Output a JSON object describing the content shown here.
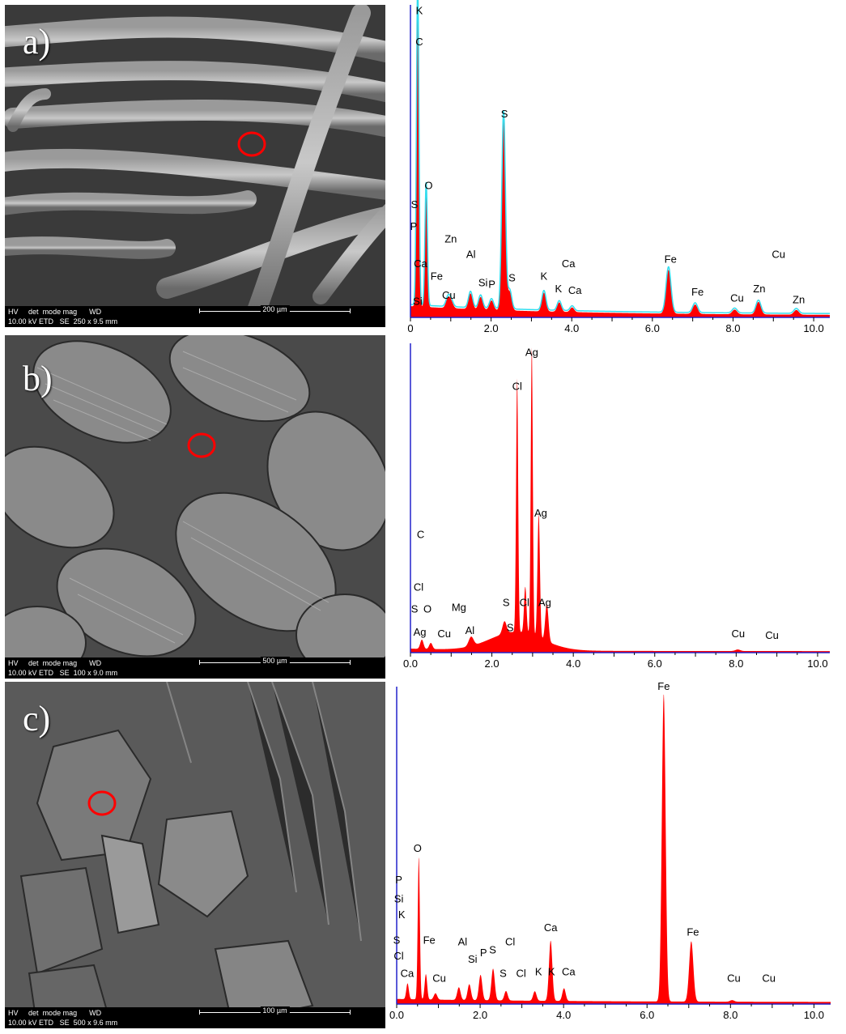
{
  "panels": [
    {
      "label": "a)",
      "sem": {
        "hv": "HV",
        "det": "det",
        "mode": "mode",
        "mag": "mag",
        "wd": "WD",
        "hv_val": "10.00 kV",
        "det_val": "ETD",
        "mode_val": "SE",
        "mag_val": "250 x",
        "wd_val": "9.5 mm",
        "scale": "200 µm"
      }
    },
    {
      "label": "b)",
      "sem": {
        "hv": "HV",
        "det": "det",
        "mode": "mode",
        "mag": "mag",
        "wd": "WD",
        "hv_val": "10.00 kV",
        "det_val": "ETD",
        "mode_val": "SE",
        "mag_val": "100 x",
        "wd_val": "9.0 mm",
        "scale": "500 µm"
      }
    },
    {
      "label": "c)",
      "sem": {
        "hv": "HV",
        "det": "det",
        "mode": "mode",
        "mag": "mag",
        "wd": "WD",
        "hv_val": "10.00 kV",
        "det_val": "ETD",
        "mode_val": "SE",
        "mag_val": "500 x",
        "wd_val": "9.6 mm",
        "scale": "100 µm"
      }
    }
  ],
  "colors": {
    "spectrum_fill": "#ff0000",
    "overlay_line": "#33ddee",
    "axis": "#2222cc",
    "marker": "#ff0000"
  },
  "chart_data": [
    {
      "type": "area",
      "panel": "a",
      "xlim": [
        0,
        10.4
      ],
      "ylim": [
        0,
        100
      ],
      "xticks": [
        "0",
        "2.0",
        "4.0",
        "6.0",
        "8.0",
        "10.0"
      ],
      "xtick_values": [
        0,
        2,
        4,
        6,
        8,
        10
      ],
      "overlay": true,
      "peaks": [
        {
          "x": 0.18,
          "h": 100,
          "w": 0.03
        },
        {
          "x": 0.39,
          "h": 38,
          "w": 0.03
        },
        {
          "x": 0.93,
          "h": 3,
          "w": 0.05
        },
        {
          "x": 1.01,
          "h": 2,
          "w": 0.05
        },
        {
          "x": 1.49,
          "h": 5,
          "w": 0.05
        },
        {
          "x": 1.74,
          "h": 4,
          "w": 0.05
        },
        {
          "x": 2.01,
          "h": 3,
          "w": 0.05
        },
        {
          "x": 2.31,
          "h": 61,
          "w": 0.045
        },
        {
          "x": 2.46,
          "h": 6,
          "w": 0.05
        },
        {
          "x": 3.31,
          "h": 6,
          "w": 0.05
        },
        {
          "x": 3.69,
          "h": 3,
          "w": 0.05
        },
        {
          "x": 4.01,
          "h": 1.5,
          "w": 0.05
        },
        {
          "x": 6.4,
          "h": 14,
          "w": 0.06
        },
        {
          "x": 7.06,
          "h": 3,
          "w": 0.06
        },
        {
          "x": 8.04,
          "h": 1.5,
          "w": 0.06
        },
        {
          "x": 8.63,
          "h": 4,
          "w": 0.06
        },
        {
          "x": 9.57,
          "h": 1.5,
          "w": 0.06
        }
      ],
      "background": 3,
      "labels": [
        {
          "text": "K",
          "x": 0.22,
          "y": 97
        },
        {
          "text": "C",
          "x": 0.22,
          "y": 87
        },
        {
          "text": "S",
          "x": 2.33,
          "y": 64
        },
        {
          "text": "O",
          "x": 0.45,
          "y": 41
        },
        {
          "text": "S",
          "x": 0.1,
          "y": 35
        },
        {
          "text": "P",
          "x": 0.08,
          "y": 28
        },
        {
          "text": "Zn",
          "x": 1.0,
          "y": 24
        },
        {
          "text": "Al",
          "x": 1.5,
          "y": 19
        },
        {
          "text": "Ca",
          "x": 0.25,
          "y": 16
        },
        {
          "text": "Fe",
          "x": 0.65,
          "y": 12
        },
        {
          "text": "Si",
          "x": 1.8,
          "y": 10
        },
        {
          "text": "P",
          "x": 2.02,
          "y": 9.5
        },
        {
          "text": "S",
          "x": 2.52,
          "y": 11.5
        },
        {
          "text": "Cu",
          "x": 0.95,
          "y": 6
        },
        {
          "text": "Si",
          "x": 0.18,
          "y": 4
        },
        {
          "text": "K",
          "x": 3.31,
          "y": 12
        },
        {
          "text": "Ca",
          "x": 3.92,
          "y": 16
        },
        {
          "text": "K",
          "x": 3.67,
          "y": 8
        },
        {
          "text": "Ca",
          "x": 4.08,
          "y": 7.5
        },
        {
          "text": "Fe",
          "x": 6.45,
          "y": 17.5
        },
        {
          "text": "Cu",
          "x": 9.13,
          "y": 19
        },
        {
          "text": "Fe",
          "x": 7.12,
          "y": 7
        },
        {
          "text": "Cu",
          "x": 8.1,
          "y": 5
        },
        {
          "text": "Zn",
          "x": 8.65,
          "y": 8
        },
        {
          "text": "Zn",
          "x": 9.63,
          "y": 4.5
        }
      ]
    },
    {
      "type": "area",
      "panel": "b",
      "xlim": [
        0,
        10.3
      ],
      "ylim": [
        0,
        100
      ],
      "xticks": [
        "0.0",
        "2.0",
        "4.0",
        "6.0",
        "8.0",
        "10.0"
      ],
      "xtick_values": [
        0,
        2,
        4,
        6,
        8,
        10
      ],
      "overlay": false,
      "peaks": [
        {
          "x": 0.28,
          "h": 3,
          "w": 0.04
        },
        {
          "x": 0.5,
          "h": 2,
          "w": 0.04
        },
        {
          "x": 1.49,
          "h": 3,
          "w": 0.06
        },
        {
          "x": 2.31,
          "h": 4,
          "w": 0.05
        },
        {
          "x": 2.62,
          "h": 82,
          "w": 0.025
        },
        {
          "x": 2.82,
          "h": 15,
          "w": 0.03
        },
        {
          "x": 2.98,
          "h": 93,
          "w": 0.025
        },
        {
          "x": 3.15,
          "h": 40,
          "w": 0.03
        },
        {
          "x": 3.35,
          "h": 12,
          "w": 0.04
        },
        {
          "x": 8.04,
          "h": 0.5,
          "w": 0.06
        }
      ],
      "background_curve": true,
      "labels": [
        {
          "text": "Ag",
          "x": 2.98,
          "y": 96
        },
        {
          "text": "Cl",
          "x": 2.62,
          "y": 85
        },
        {
          "text": "Ag",
          "x": 3.2,
          "y": 44
        },
        {
          "text": "C",
          "x": 0.25,
          "y": 37
        },
        {
          "text": "Cl",
          "x": 0.2,
          "y": 20
        },
        {
          "text": "S",
          "x": 0.1,
          "y": 13
        },
        {
          "text": "O",
          "x": 0.42,
          "y": 13
        },
        {
          "text": "Mg",
          "x": 1.19,
          "y": 13.5
        },
        {
          "text": "S",
          "x": 2.35,
          "y": 15
        },
        {
          "text": "Cl",
          "x": 2.8,
          "y": 15
        },
        {
          "text": "Ag",
          "x": 3.3,
          "y": 15
        },
        {
          "text": "Ag",
          "x": 0.23,
          "y": 5.5
        },
        {
          "text": "Cu",
          "x": 0.83,
          "y": 5
        },
        {
          "text": "Al",
          "x": 1.46,
          "y": 6
        },
        {
          "text": "S",
          "x": 2.45,
          "y": 7
        },
        {
          "text": "Cu",
          "x": 8.05,
          "y": 5
        },
        {
          "text": "Cu",
          "x": 8.88,
          "y": 4.5
        }
      ]
    },
    {
      "type": "area",
      "panel": "c",
      "xlim": [
        0,
        10.4
      ],
      "ylim": [
        0,
        100
      ],
      "xticks": [
        "0.0",
        "2.0",
        "4.0",
        "6.0",
        "8.0",
        "10.0"
      ],
      "xtick_values": [
        0,
        2,
        4,
        6,
        8,
        10
      ],
      "overlay": false,
      "peaks": [
        {
          "x": 0.26,
          "h": 5,
          "w": 0.03
        },
        {
          "x": 0.53,
          "h": 45,
          "w": 0.025
        },
        {
          "x": 0.7,
          "h": 8,
          "w": 0.03
        },
        {
          "x": 0.93,
          "h": 2,
          "w": 0.04
        },
        {
          "x": 1.49,
          "h": 4,
          "w": 0.04
        },
        {
          "x": 1.74,
          "h": 5,
          "w": 0.04
        },
        {
          "x": 2.01,
          "h": 8,
          "w": 0.04
        },
        {
          "x": 2.31,
          "h": 10,
          "w": 0.04
        },
        {
          "x": 2.62,
          "h": 3,
          "w": 0.04
        },
        {
          "x": 3.31,
          "h": 3,
          "w": 0.04
        },
        {
          "x": 3.69,
          "h": 19,
          "w": 0.04
        },
        {
          "x": 4.01,
          "h": 4,
          "w": 0.04
        },
        {
          "x": 6.4,
          "h": 97,
          "w": 0.045
        },
        {
          "x": 7.06,
          "h": 19,
          "w": 0.05
        },
        {
          "x": 8.04,
          "h": 0.5,
          "w": 0.05
        }
      ],
      "background": 1,
      "labels": [
        {
          "text": "Fe",
          "x": 6.4,
          "y": 99
        },
        {
          "text": "O",
          "x": 0.5,
          "y": 48
        },
        {
          "text": "P",
          "x": 0.05,
          "y": 38
        },
        {
          "text": "Si",
          "x": 0.05,
          "y": 32
        },
        {
          "text": "K",
          "x": 0.12,
          "y": 27
        },
        {
          "text": "Ca",
          "x": 3.69,
          "y": 23
        },
        {
          "text": "Fe",
          "x": 7.1,
          "y": 21.5
        },
        {
          "text": "S",
          "x": 0.0,
          "y": 19
        },
        {
          "text": "Fe",
          "x": 0.78,
          "y": 19
        },
        {
          "text": "Al",
          "x": 1.58,
          "y": 18.5
        },
        {
          "text": "S",
          "x": 2.3,
          "y": 16
        },
        {
          "text": "Cl",
          "x": 2.72,
          "y": 18.5
        },
        {
          "text": "Cl",
          "x": 0.05,
          "y": 14
        },
        {
          "text": "Si",
          "x": 1.82,
          "y": 13
        },
        {
          "text": "P",
          "x": 2.08,
          "y": 15
        },
        {
          "text": "Ca",
          "x": 0.25,
          "y": 8.5
        },
        {
          "text": "Cu",
          "x": 1.02,
          "y": 7
        },
        {
          "text": "S",
          "x": 2.55,
          "y": 8.5
        },
        {
          "text": "Cl",
          "x": 2.98,
          "y": 8.5
        },
        {
          "text": "K",
          "x": 3.4,
          "y": 9
        },
        {
          "text": "K",
          "x": 3.71,
          "y": 9
        },
        {
          "text": "Ca",
          "x": 4.12,
          "y": 9
        },
        {
          "text": "Cu",
          "x": 8.08,
          "y": 7
        },
        {
          "text": "Cu",
          "x": 8.92,
          "y": 7
        }
      ]
    }
  ]
}
